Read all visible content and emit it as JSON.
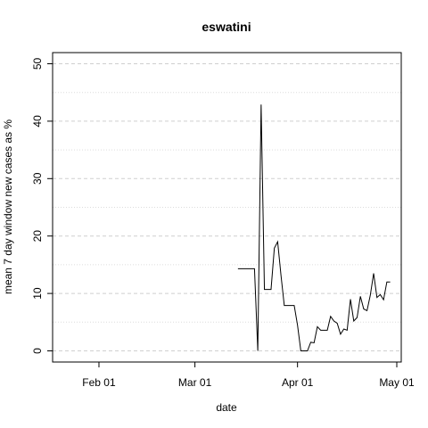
{
  "chart_data": {
    "type": "line",
    "title": "eswatini",
    "xlabel": "date",
    "ylabel": "mean  7  day window new cases as %",
    "x_ticks": [
      "2020-02-01",
      "2020-03-01",
      "2020-04-01",
      "2020-05-01"
    ],
    "x_tick_labels": [
      "Feb 01",
      "Mar 01",
      "Apr 01",
      "May 01"
    ],
    "y_ticks": [
      0,
      10,
      20,
      30,
      40,
      50
    ],
    "xlim": [
      "2020-01-25",
      "2020-05-01"
    ],
    "ylim": [
      0,
      50
    ],
    "grid": "horizontal dashed (major) and dotted (minor)",
    "series": [
      {
        "color": "#000000",
        "x": [
          "2020-03-14",
          "2020-03-15",
          "2020-03-16",
          "2020-03-17",
          "2020-03-18",
          "2020-03-19",
          "2020-03-20",
          "2020-03-21",
          "2020-03-22",
          "2020-03-23",
          "2020-03-24",
          "2020-03-25",
          "2020-03-26",
          "2020-03-27",
          "2020-03-28",
          "2020-03-29",
          "2020-03-30",
          "2020-03-31",
          "2020-04-01",
          "2020-04-02",
          "2020-04-03",
          "2020-04-04",
          "2020-04-05",
          "2020-04-06",
          "2020-04-07",
          "2020-04-08",
          "2020-04-09",
          "2020-04-10",
          "2020-04-11",
          "2020-04-12",
          "2020-04-13",
          "2020-04-14",
          "2020-04-15",
          "2020-04-16",
          "2020-04-17",
          "2020-04-18",
          "2020-04-19",
          "2020-04-20",
          "2020-04-21",
          "2020-04-22",
          "2020-04-23",
          "2020-04-24",
          "2020-04-25",
          "2020-04-26",
          "2020-04-27",
          "2020-04-28",
          "2020-04-29"
        ],
        "y": [
          14.3,
          14.3,
          14.3,
          14.3,
          14.3,
          14.3,
          0.0,
          42.9,
          10.7,
          10.7,
          10.7,
          17.9,
          19.0,
          13.2,
          7.9,
          7.9,
          7.9,
          7.9,
          4.5,
          0.0,
          0.0,
          0.0,
          1.5,
          1.4,
          4.2,
          3.6,
          3.6,
          3.6,
          6.0,
          5.2,
          4.8,
          2.9,
          3.8,
          3.6,
          9.0,
          5.2,
          5.8,
          9.5,
          7.3,
          7.0,
          9.7,
          13.5,
          9.3,
          9.8,
          8.9,
          12.0,
          12.0
        ]
      }
    ]
  }
}
